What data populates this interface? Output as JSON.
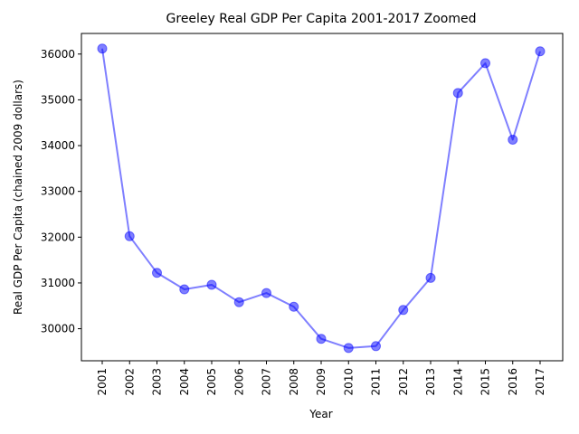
{
  "chart_data": {
    "type": "line",
    "title": "Greeley Real GDP Per Capita 2001-2017 Zoomed",
    "xlabel": "Year",
    "ylabel": "Real GDP Per Capita (chained 2009 dollars)",
    "categories": [
      "2001",
      "2002",
      "2003",
      "2004",
      "2005",
      "2006",
      "2007",
      "2008",
      "2009",
      "2010",
      "2011",
      "2012",
      "2013",
      "2014",
      "2015",
      "2016",
      "2017"
    ],
    "series": [
      {
        "values": [
          36120,
          32020,
          31220,
          30860,
          30960,
          30580,
          30780,
          30480,
          29780,
          29580,
          29620,
          30410,
          31110,
          35150,
          35800,
          34130,
          36060
        ],
        "color": "#0000ff"
      }
    ],
    "ylim": [
      29300,
      36450
    ],
    "yticks": [
      30000,
      31000,
      32000,
      33000,
      34000,
      35000,
      36000
    ],
    "ytick_labels": [
      "30000",
      "31000",
      "32000",
      "33000",
      "34000",
      "35000",
      "36000"
    ],
    "grid": false,
    "legend": "none"
  }
}
